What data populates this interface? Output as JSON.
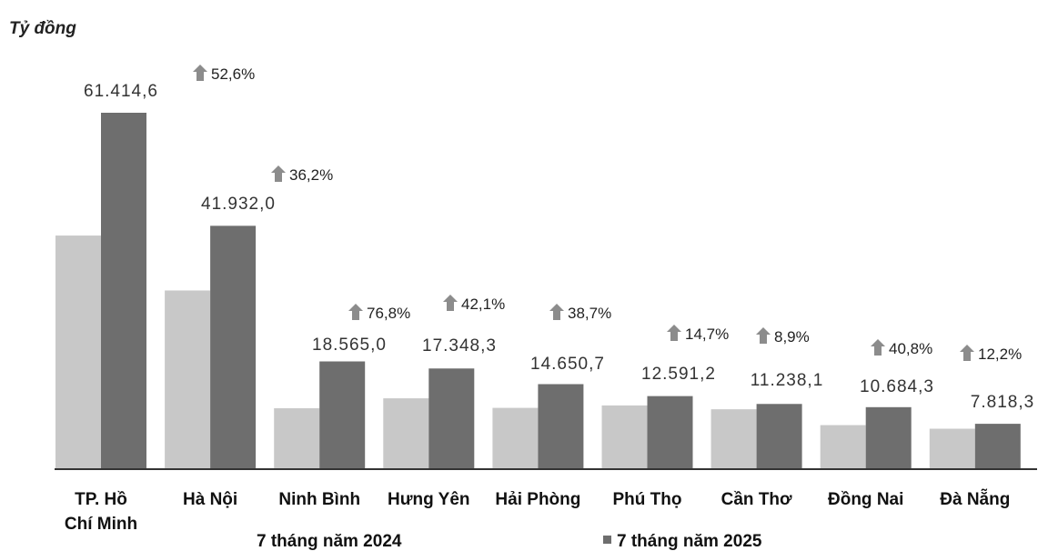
{
  "chart_data": {
    "type": "bar",
    "title": "",
    "ylabel": "Tỷ đồng",
    "xlabel": "",
    "ylim": [
      0,
      64000
    ],
    "grid": false,
    "legend": "bottom",
    "categories": [
      "TP. Hồ Chí Minh",
      "Hà Nội",
      "Ninh Bình",
      "Hưng Yên",
      "Hải Phòng",
      "Phú Thọ",
      "Cần Thơ",
      "Đồng Nai",
      "Đà Nẵng"
    ],
    "series": [
      {
        "name": "7 tháng năm 2024",
        "color": "#c8c8c8",
        "values": [
          40250,
          30790,
          10500,
          12210,
          10560,
          10980,
          10320,
          7590,
          6970
        ]
      },
      {
        "name": "7 tháng năm 2025",
        "color": "#6e6e6e",
        "values": [
          61414.6,
          41932.0,
          18565.0,
          17348.3,
          14650.7,
          12591.2,
          11238.1,
          10684.3,
          7818.3
        ]
      }
    ],
    "value_labels": [
      "61.414,6",
      "41.932,0",
      "18.565,0",
      "17.348,3",
      "14.650,7",
      "12.591,2",
      "11.238,1",
      "10.684,3",
      "7.818,3"
    ],
    "growth_labels": [
      "52,6%",
      "36,2%",
      "76,8%",
      "42,1%",
      "38,7%",
      "14,7%",
      "8,9%",
      "40,8%",
      "12,2%"
    ],
    "category_lines": [
      [
        "TP. Hồ",
        "Chí Minh"
      ],
      [
        "Hà Nội"
      ],
      [
        "Ninh Bình"
      ],
      [
        "Hưng Yên"
      ],
      [
        "Hải Phòng"
      ],
      [
        "Phú Thọ"
      ],
      [
        "Cần Thơ"
      ],
      [
        "Đồng Nai"
      ],
      [
        "Đà Nẵng"
      ]
    ],
    "arrow_icon": "up-arrow-icon",
    "arrow_color": "#8c8c8c"
  }
}
